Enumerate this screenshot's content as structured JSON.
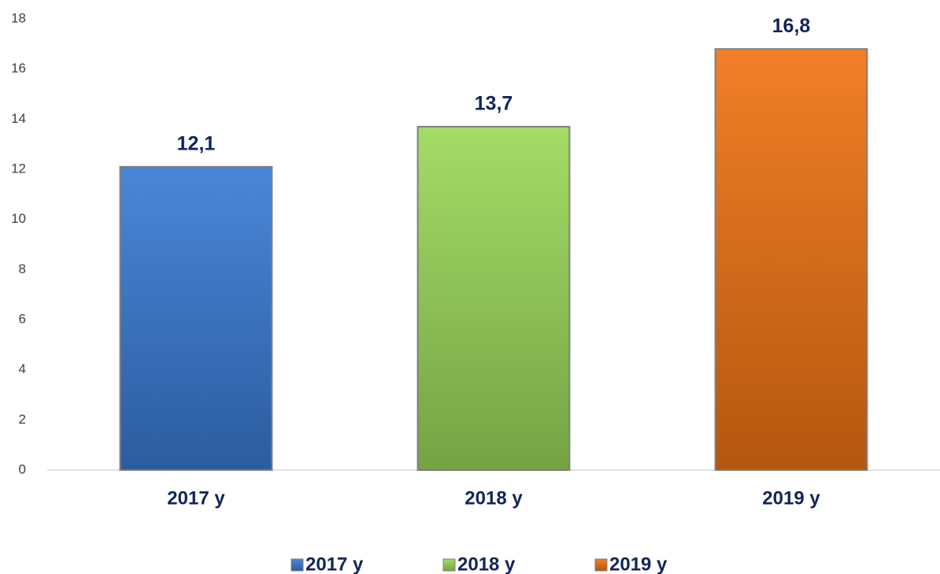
{
  "chart_data": {
    "type": "bar",
    "categories": [
      "2017 y",
      "2018 y",
      "2019 y"
    ],
    "values": [
      12.1,
      13.7,
      16.8
    ],
    "value_labels": [
      "12,1",
      "13,7",
      "16,8"
    ],
    "colors": [
      "#3a7bd5",
      "#9cd95a",
      "#f07414"
    ],
    "ylim": [
      0,
      18
    ],
    "yticks": [
      0,
      2,
      4,
      6,
      8,
      10,
      12,
      14,
      16,
      18
    ],
    "grid": false,
    "legend": "bottom"
  }
}
